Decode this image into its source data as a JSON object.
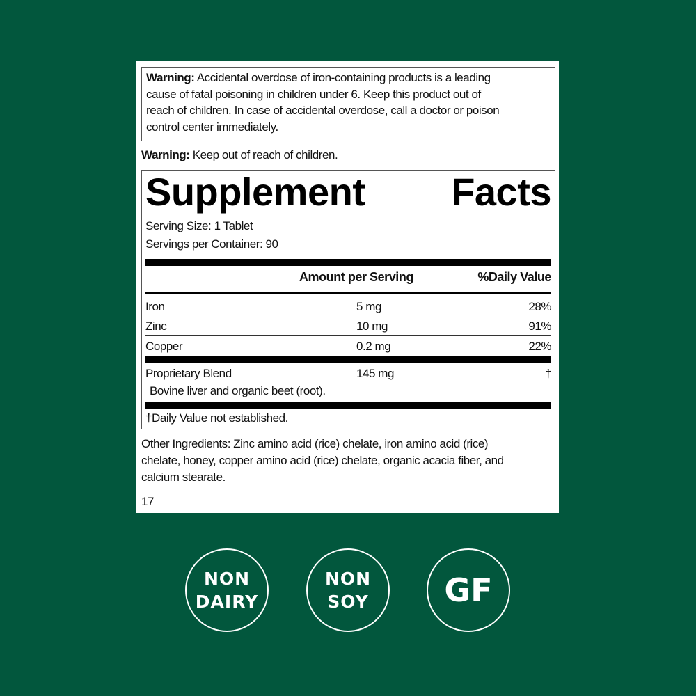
{
  "warning_box": {
    "label": "Warning:",
    "lines": [
      " Accidental overdose of iron-containing products is a leading",
      "cause of fatal poisoning in children under 6. Keep this product out of",
      "reach of children. In case of accidental overdose, call a doctor or poison",
      "control center immediately."
    ]
  },
  "warning2": {
    "label": "Warning:",
    "text": " Keep out of reach of children."
  },
  "facts": {
    "title_left": "Supplement",
    "title_right": "Facts",
    "serving_size": "Serving Size: 1 Tablet",
    "servings_per_container": "Servings per Container: 90",
    "header_amount": "Amount per Serving",
    "header_dv": "%Daily Value",
    "rows": [
      {
        "name": "Iron",
        "amount": "5 mg",
        "dv": "28%"
      },
      {
        "name": "Zinc",
        "amount": "10 mg",
        "dv": "91%"
      },
      {
        "name": "Copper",
        "amount": "0.2 mg",
        "dv": "22%"
      }
    ],
    "blend": {
      "name": "Proprietary Blend",
      "amount": "145 mg",
      "dv": "†",
      "detail": "Bovine liver and organic beet (root)."
    },
    "footnote": "†Daily Value not established."
  },
  "other_ingredients": [
    "Other Ingredients: Zinc amino acid (rice) chelate, iron amino acid (rice)",
    "chelate, honey, copper amino acid (rice) chelate, organic acacia fiber, and",
    "calcium stearate."
  ],
  "code": "17",
  "badges": [
    {
      "lines": [
        "NON",
        "DAIRY"
      ]
    },
    {
      "lines": [
        "NON",
        "SOY"
      ]
    },
    {
      "lines": [
        "GF"
      ]
    }
  ],
  "colors": {
    "background": "#02573d",
    "panel": "#ffffff",
    "text": "#111111"
  }
}
